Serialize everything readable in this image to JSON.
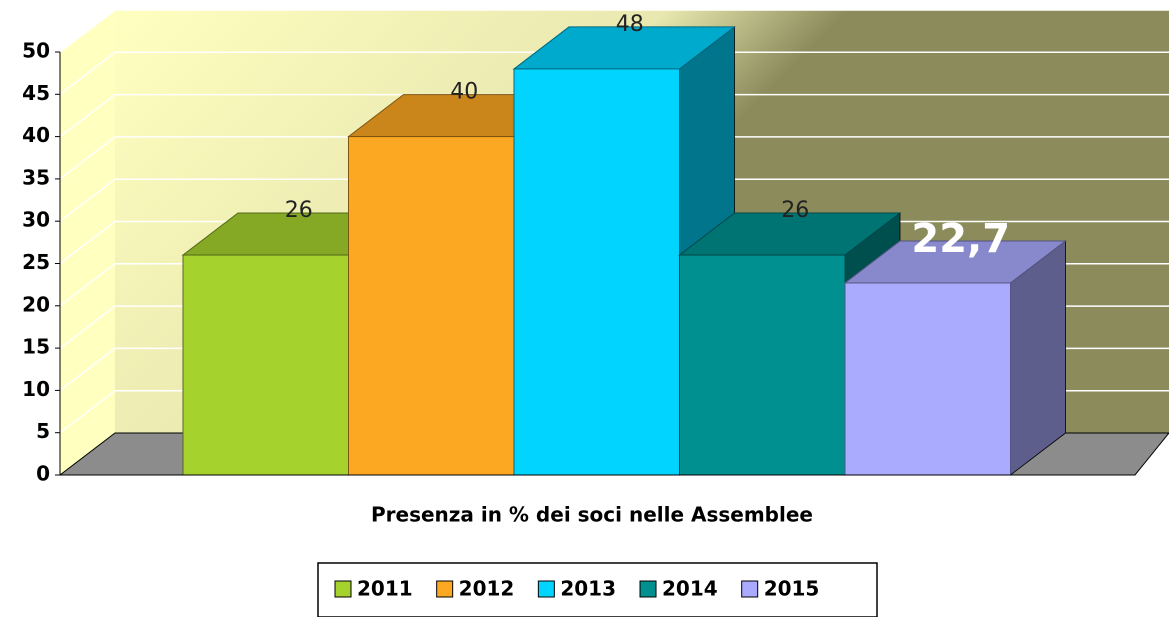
{
  "chart_data": {
    "type": "bar3d",
    "categories": [
      "Presenza in % dei soci nelle Assemblee"
    ],
    "ylim": [
      0,
      50
    ],
    "yticks": [
      0,
      5,
      10,
      15,
      20,
      25,
      30,
      35,
      40,
      45,
      50
    ],
    "grid": true,
    "legend": "bottom",
    "series": [
      {
        "name": "2011",
        "color": "#a6d22e",
        "values": [
          26
        ],
        "value_labels": [
          "26"
        ]
      },
      {
        "name": "2012",
        "color": "#fca822",
        "values": [
          40
        ],
        "value_labels": [
          "40"
        ]
      },
      {
        "name": "2013",
        "color": "#00d4ff",
        "values": [
          48
        ],
        "value_labels": [
          "48"
        ]
      },
      {
        "name": "2014",
        "color": "#009090",
        "values": [
          26
        ],
        "value_labels": [
          "26"
        ]
      },
      {
        "name": "2015",
        "color": "#aaaaff",
        "values": [
          22.7
        ],
        "value_labels": [
          "22,7"
        ]
      }
    ]
  }
}
